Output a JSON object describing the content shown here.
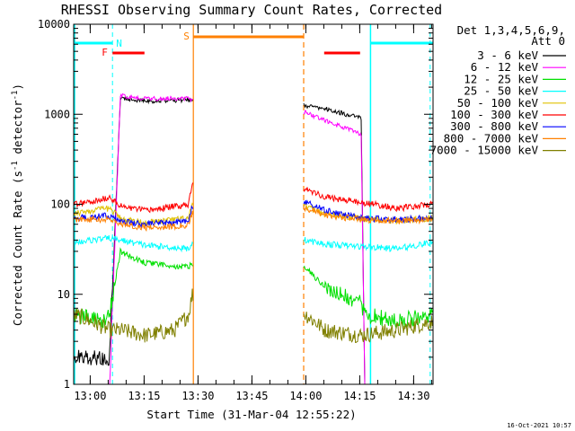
{
  "chart_data": {
    "type": "line",
    "title": "RHESSI Observing Summary Count Rates, Corrected",
    "xlabel": "Start Time (31-Mar-04 12:55:22)",
    "ylabel_main": "Corrected Count Rate (s",
    "ylabel_sup1": "-1",
    "ylabel_mid": " detector",
    "ylabel_sup2": "-1",
    "ylabel_end": ")",
    "footer": "16-Oct-2021 10:57",
    "detectors": "Det 1,3,4,5,6,9,",
    "attenuator": "Att 0",
    "y_scale": "log",
    "ylim": [
      1,
      10000
    ],
    "y_ticks": [
      {
        "value": 1,
        "label": "1"
      },
      {
        "value": 10,
        "label": "10"
      },
      {
        "value": 100,
        "label": "100"
      },
      {
        "value": 1000,
        "label": "1000"
      },
      {
        "value": 10000,
        "label": "10000"
      }
    ],
    "xlim_minutes": [
      0,
      100
    ],
    "x_ticks": [
      {
        "label": "13:00",
        "minute": 4.6
      },
      {
        "label": "13:15",
        "minute": 19.6
      },
      {
        "label": "13:30",
        "minute": 34.6
      },
      {
        "label": "13:45",
        "minute": 49.6
      },
      {
        "label": "14:00",
        "minute": 64.6
      },
      {
        "label": "14:15",
        "minute": 79.6
      },
      {
        "label": "14:30",
        "minute": 94.6
      }
    ],
    "flags": {
      "night_label": "N",
      "flare_label": "F",
      "saa_label": "S",
      "night": [
        [
          0,
          10.8
        ],
        [
          82.6,
          100
        ]
      ],
      "flare": [
        [
          10.8,
          19.7
        ],
        [
          69.7,
          79.7
        ]
      ],
      "saa": [
        [
          33.3,
          64.0
        ]
      ]
    },
    "gaps": [
      [
        33.3,
        64.0
      ]
    ],
    "series": [
      {
        "name": "3 - 6 keV",
        "color": "#000000",
        "points": [
          [
            0,
            2
          ],
          [
            10,
            2
          ],
          [
            13,
            1500
          ],
          [
            20,
            1400
          ],
          [
            32,
            1450
          ],
          [
            33,
            1400
          ],
          [
            64.5,
            1250
          ],
          [
            70,
            1150
          ],
          [
            80,
            900
          ],
          [
            81,
            1
          ],
          [
            82.6,
            1
          ]
        ]
      },
      {
        "name": "6 - 12 keV",
        "color": "#ff00ff",
        "points": [
          [
            0,
            1
          ],
          [
            10,
            1
          ],
          [
            13,
            1600
          ],
          [
            20,
            1500
          ],
          [
            32,
            1500
          ],
          [
            33,
            1450
          ],
          [
            64.5,
            1050
          ],
          [
            70,
            850
          ],
          [
            80,
            600
          ],
          [
            81,
            1
          ],
          [
            82.6,
            1
          ]
        ]
      },
      {
        "name": "12 - 25 keV",
        "color": "#00e000",
        "points": [
          [
            0,
            6
          ],
          [
            8,
            5
          ],
          [
            10,
            6
          ],
          [
            13,
            30
          ],
          [
            20,
            22
          ],
          [
            32,
            20
          ],
          [
            33,
            22
          ],
          [
            64.5,
            20
          ],
          [
            70,
            12
          ],
          [
            80,
            8
          ],
          [
            81,
            6
          ],
          [
            90,
            5
          ],
          [
            100,
            6
          ]
        ]
      },
      {
        "name": "25 - 50 keV",
        "color": "#00ffff",
        "points": [
          [
            0,
            38
          ],
          [
            5,
            40
          ],
          [
            10,
            42
          ],
          [
            13,
            40
          ],
          [
            20,
            35
          ],
          [
            32,
            32
          ],
          [
            33,
            38
          ],
          [
            64.5,
            40
          ],
          [
            70,
            36
          ],
          [
            80,
            34
          ],
          [
            90,
            32
          ],
          [
            100,
            38
          ]
        ]
      },
      {
        "name": "50 - 100 keV",
        "color": "#e0c000",
        "points": [
          [
            0,
            80
          ],
          [
            5,
            85
          ],
          [
            10,
            90
          ],
          [
            13,
            70
          ],
          [
            20,
            62
          ],
          [
            32,
            70
          ],
          [
            33,
            100
          ],
          [
            64.5,
            95
          ],
          [
            70,
            78
          ],
          [
            80,
            70
          ],
          [
            90,
            65
          ],
          [
            100,
            70
          ]
        ]
      },
      {
        "name": "100 - 300 keV",
        "color": "#ff0000",
        "points": [
          [
            0,
            100
          ],
          [
            5,
            105
          ],
          [
            10,
            120
          ],
          [
            13,
            95
          ],
          [
            20,
            85
          ],
          [
            32,
            100
          ],
          [
            33,
            180
          ],
          [
            64.5,
            150
          ],
          [
            70,
            120
          ],
          [
            80,
            105
          ],
          [
            90,
            90
          ],
          [
            100,
            100
          ]
        ]
      },
      {
        "name": "300 - 800 keV",
        "color": "#0000ff",
        "points": [
          [
            0,
            70
          ],
          [
            5,
            72
          ],
          [
            10,
            75
          ],
          [
            13,
            65
          ],
          [
            20,
            60
          ],
          [
            32,
            65
          ],
          [
            33,
            95
          ],
          [
            64.5,
            105
          ],
          [
            70,
            85
          ],
          [
            80,
            70
          ],
          [
            90,
            68
          ],
          [
            100,
            70
          ]
        ]
      },
      {
        "name": "800 - 7000 keV",
        "color": "#ff8000",
        "points": [
          [
            0,
            68
          ],
          [
            10,
            68
          ],
          [
            13,
            60
          ],
          [
            20,
            55
          ],
          [
            32,
            58
          ],
          [
            33,
            80
          ],
          [
            64.5,
            90
          ],
          [
            70,
            75
          ],
          [
            80,
            68
          ],
          [
            90,
            65
          ],
          [
            100,
            68
          ]
        ]
      },
      {
        "name": "7000 - 15000 keV",
        "color": "#808000",
        "points": [
          [
            0,
            6
          ],
          [
            5,
            5
          ],
          [
            10,
            4
          ],
          [
            13,
            4
          ],
          [
            20,
            3.5
          ],
          [
            28,
            4
          ],
          [
            32,
            6
          ],
          [
            33,
            10
          ],
          [
            64.5,
            6
          ],
          [
            70,
            4
          ],
          [
            80,
            3.5
          ],
          [
            90,
            4
          ],
          [
            100,
            5
          ]
        ]
      }
    ]
  }
}
